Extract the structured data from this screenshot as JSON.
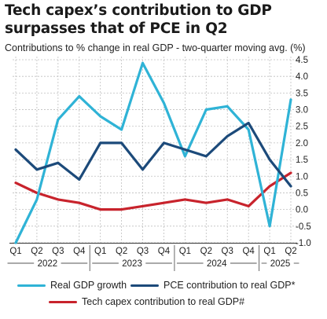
{
  "title": "Tech capex’s contribution to GDP surpasses that of PCE in Q2",
  "subtitle": "Contributions to % change in real GDP - two-quarter moving avg. (%)",
  "colors": {
    "real_gdp": "#2fb3d6",
    "pce": "#1c4a7a",
    "tech_capex": "#c8232c",
    "grid": "#bfbfbf",
    "axis": "#333333"
  },
  "chart_data": {
    "type": "line",
    "categories": [
      "Q1",
      "Q2",
      "Q3",
      "Q4",
      "Q1",
      "Q2",
      "Q3",
      "Q4",
      "Q1",
      "Q2",
      "Q3",
      "Q4",
      "Q1",
      "Q2"
    ],
    "years": [
      {
        "label": "2022",
        "start": 0,
        "end": 3
      },
      {
        "label": "2023",
        "start": 4,
        "end": 7
      },
      {
        "label": "2024",
        "start": 8,
        "end": 11
      },
      {
        "label": "2025",
        "start": 12,
        "end": 13
      }
    ],
    "ylim": [
      -1.0,
      4.5
    ],
    "yticks": [
      "-1.0",
      "-0.5",
      "0.0",
      "0.5",
      "1.0",
      "1.5",
      "2.0",
      "2.5",
      "3.0",
      "3.5",
      "4.0",
      "4.5"
    ],
    "grid": true,
    "series": [
      {
        "key": "real_gdp",
        "name": "Real GDP growth",
        "values": [
          -1.0,
          0.3,
          2.7,
          3.4,
          2.8,
          2.4,
          4.4,
          3.2,
          1.6,
          3.0,
          3.1,
          2.4,
          -0.5,
          3.3
        ]
      },
      {
        "key": "pce",
        "name": "PCE contribution to real GDP*",
        "values": [
          1.8,
          1.2,
          1.4,
          0.9,
          2.0,
          2.0,
          1.2,
          2.0,
          1.8,
          1.6,
          2.2,
          2.6,
          1.5,
          0.7
        ]
      },
      {
        "key": "tech_capex",
        "name": "Tech capex contribution to real GDP#",
        "values": [
          0.8,
          0.5,
          0.3,
          0.2,
          0.0,
          0.0,
          0.1,
          0.2,
          0.3,
          0.2,
          0.3,
          0.1,
          0.7,
          1.1
        ]
      }
    ]
  }
}
